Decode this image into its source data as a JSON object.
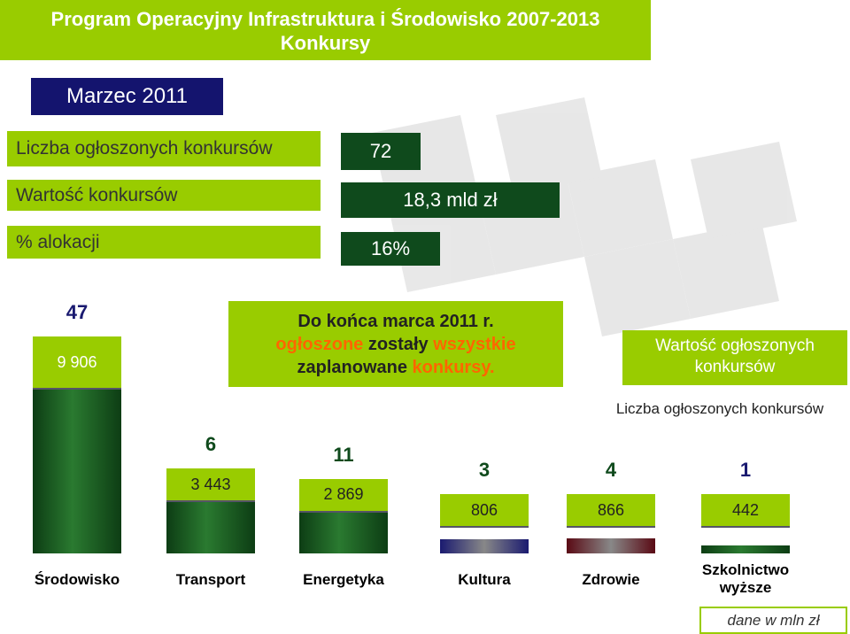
{
  "header": {
    "title": "Program Operacyjny Infrastruktura i Środowisko 2007-2013",
    "subtitle": "Konkursy"
  },
  "period": "Marzec 2011",
  "summary": {
    "rows": [
      {
        "label": "Liczba ogłoszonych konkursów",
        "value": "72"
      },
      {
        "label": "Wartość konkursów",
        "value": "18,3 mld zł"
      },
      {
        "label": "% alokacji",
        "value": "16%"
      }
    ]
  },
  "note": {
    "segments": [
      "Do końca marca 2011 r.",
      "ogłoszone",
      " zostały ",
      "wszystkie",
      "zaplanowane ",
      "konkursy."
    ]
  },
  "legend": {
    "value_label": "Wartość ogłoszonych konkursów",
    "count_label": "Liczba ogłoszonych konkursów"
  },
  "sectors": [
    {
      "name": "Środowisko",
      "count": 47,
      "value": 9906,
      "value_label": "9 906",
      "color": "#0d3d14"
    },
    {
      "name": "Transport",
      "count": 6,
      "value": 3443,
      "value_label": "3 443",
      "color": "#0d3d14"
    },
    {
      "name": "Energetyka",
      "count": 11,
      "value": 2869,
      "value_label": "2 869",
      "color": "#0d3d14"
    },
    {
      "name": "Kultura",
      "count": 3,
      "value": 806,
      "value_label": "806",
      "color": "#1a1a70"
    },
    {
      "name": "Zdrowie",
      "count": 4,
      "value": 866,
      "value_label": "866",
      "color": "#5a0a14"
    },
    {
      "name": "Szkolnictwo wyższe",
      "count": 1,
      "value": 442,
      "value_label": "442",
      "color": "#0d3d14"
    }
  ],
  "unit_note": "dane w mln zł"
}
